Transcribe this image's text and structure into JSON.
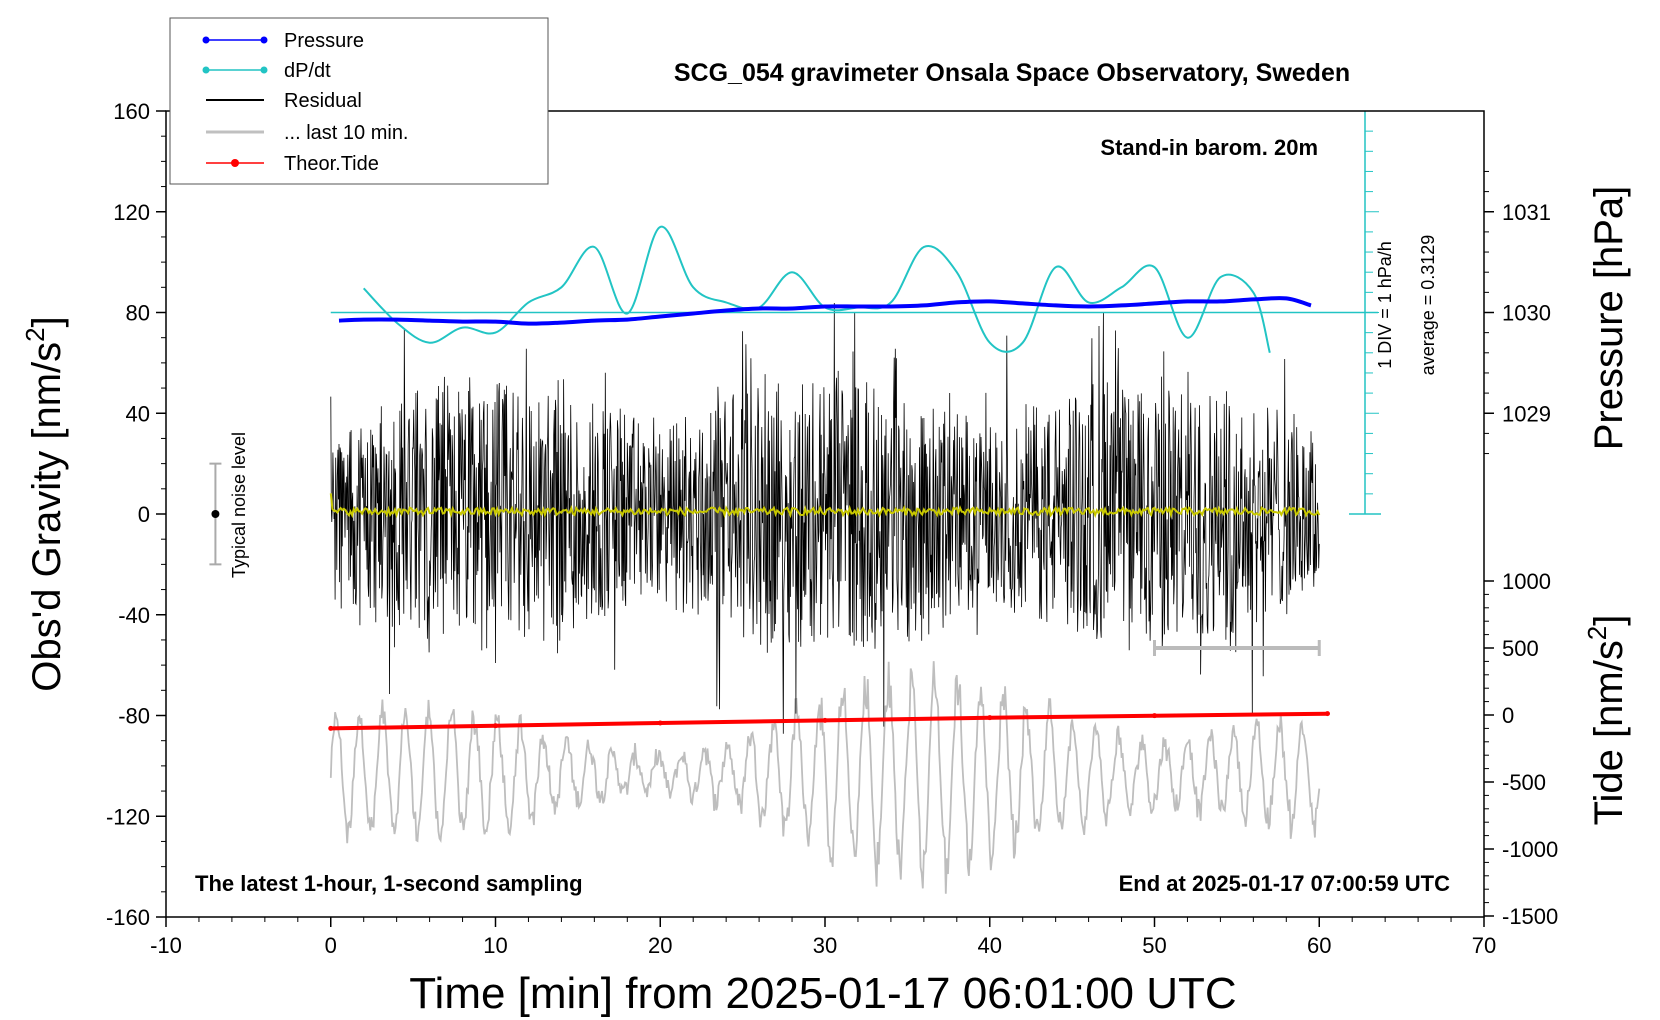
{
  "chart_data": {
    "type": "line",
    "title": "SCG_054 gravimeter Onsala Space Observatory, Sweden",
    "xlabel": "Time [min] from 2025-01-17 06:01:00 UTC",
    "xlim": [
      -10,
      70
    ],
    "xticks": [
      "-10",
      "0",
      "10",
      "20",
      "30",
      "40",
      "50",
      "60",
      "70"
    ],
    "ylabel_left": "Obs'd Gravity [nm/s",
    "ylabel_left_sup": "2",
    "ylabel_left_end": "]",
    "ylim_left": [
      -160,
      160
    ],
    "yticks_left": [
      "160",
      "120",
      "80",
      "40",
      "0",
      "-40",
      "-80",
      "-120",
      "-160"
    ],
    "ylabel_pressure": "Pressure [hPa]",
    "pressure_ticks": [
      "1031",
      "1030",
      "1029"
    ],
    "pressure_tick_values": [
      1031,
      1030,
      1029
    ],
    "ylabel_tide": "Tide [nm/s",
    "ylabel_tide_sup": "2",
    "ylabel_tide_end": "]",
    "tide_ticks": [
      "1000",
      "500",
      "0",
      "-500",
      "-1000",
      "-1500"
    ],
    "tide_tick_values": [
      1000,
      500,
      0,
      -500,
      -1000,
      -1500
    ],
    "legend": {
      "pressure": "Pressure",
      "dpdt": "dP/dt",
      "residual": "Residual",
      "last10": "... last 10 min.",
      "tide": "Theor.Tide"
    },
    "colors": {
      "pressure": "#0000ff",
      "dpdt": "#22c4c4",
      "residual": "#000000",
      "last10": "#c0c0c0",
      "tide": "#ff0000",
      "mean": "#c8c800",
      "gray_raw": "#bebebe"
    },
    "annotations": {
      "barometer": "Stand-in barom. 20m",
      "dpdt_scale": "1 DIV = 1 hPa/h",
      "average": "average = 0.3129",
      "noise": "Typical noise level",
      "sampling": "The latest 1-hour, 1-second sampling",
      "end_time": "End at 2025-01-17 07:00:59 UTC"
    },
    "noise_level_range": [
      -20,
      20
    ],
    "last10_range_min": [
      50,
      60
    ],
    "pressure_series": {
      "x": [
        0.5,
        2,
        4,
        6,
        8,
        10,
        12,
        14,
        16,
        18,
        20,
        22,
        24,
        26,
        28,
        30,
        32,
        34,
        36,
        38,
        40,
        42,
        44,
        46,
        48,
        50,
        52,
        54,
        56,
        58,
        59.5
      ],
      "hPa": [
        1029.92,
        1029.93,
        1029.93,
        1029.92,
        1029.91,
        1029.91,
        1029.89,
        1029.9,
        1029.92,
        1029.93,
        1029.96,
        1029.99,
        1030.02,
        1030.04,
        1030.04,
        1030.06,
        1030.06,
        1030.06,
        1030.07,
        1030.1,
        1030.11,
        1030.09,
        1030.07,
        1030.06,
        1030.07,
        1030.09,
        1030.11,
        1030.11,
        1030.13,
        1030.14,
        1030.07
      ]
    },
    "dpdt_series": {
      "x": [
        2,
        4,
        6,
        8,
        10,
        12,
        14,
        16,
        18,
        20,
        22,
        24,
        26,
        28,
        30,
        32,
        34,
        36,
        38,
        40,
        42,
        44,
        46,
        48,
        50,
        52,
        54,
        56,
        57
      ],
      "hPa_per_h": [
        0.48,
        -0.2,
        -0.6,
        -0.3,
        -0.4,
        0.2,
        0.5,
        1.3,
        -0.02,
        1.7,
        0.5,
        0.2,
        0.1,
        0.8,
        0.1,
        0.1,
        0.2,
        1.3,
        0.8,
        -0.6,
        -0.6,
        0.9,
        0.2,
        0.5,
        0.9,
        -0.5,
        0.7,
        0.4,
        -0.8
      ],
      "zero_line_at": 80
    },
    "residual": {
      "x_range": [
        0,
        60
      ],
      "envelope_nm_s2": 60
    },
    "last10_residual": {
      "x_range": [
        50,
        60
      ]
    },
    "tide_series": {
      "x": [
        0,
        10,
        20,
        30,
        40,
        50,
        60.5
      ],
      "nm_s2": [
        -100,
        -80,
        -60,
        -40,
        -20,
        -5,
        10
      ]
    },
    "gray_raw_series": {
      "x_range": [
        0,
        60
      ],
      "center_nm_s2": -440,
      "amplitude_nm_s2": 900
    }
  }
}
